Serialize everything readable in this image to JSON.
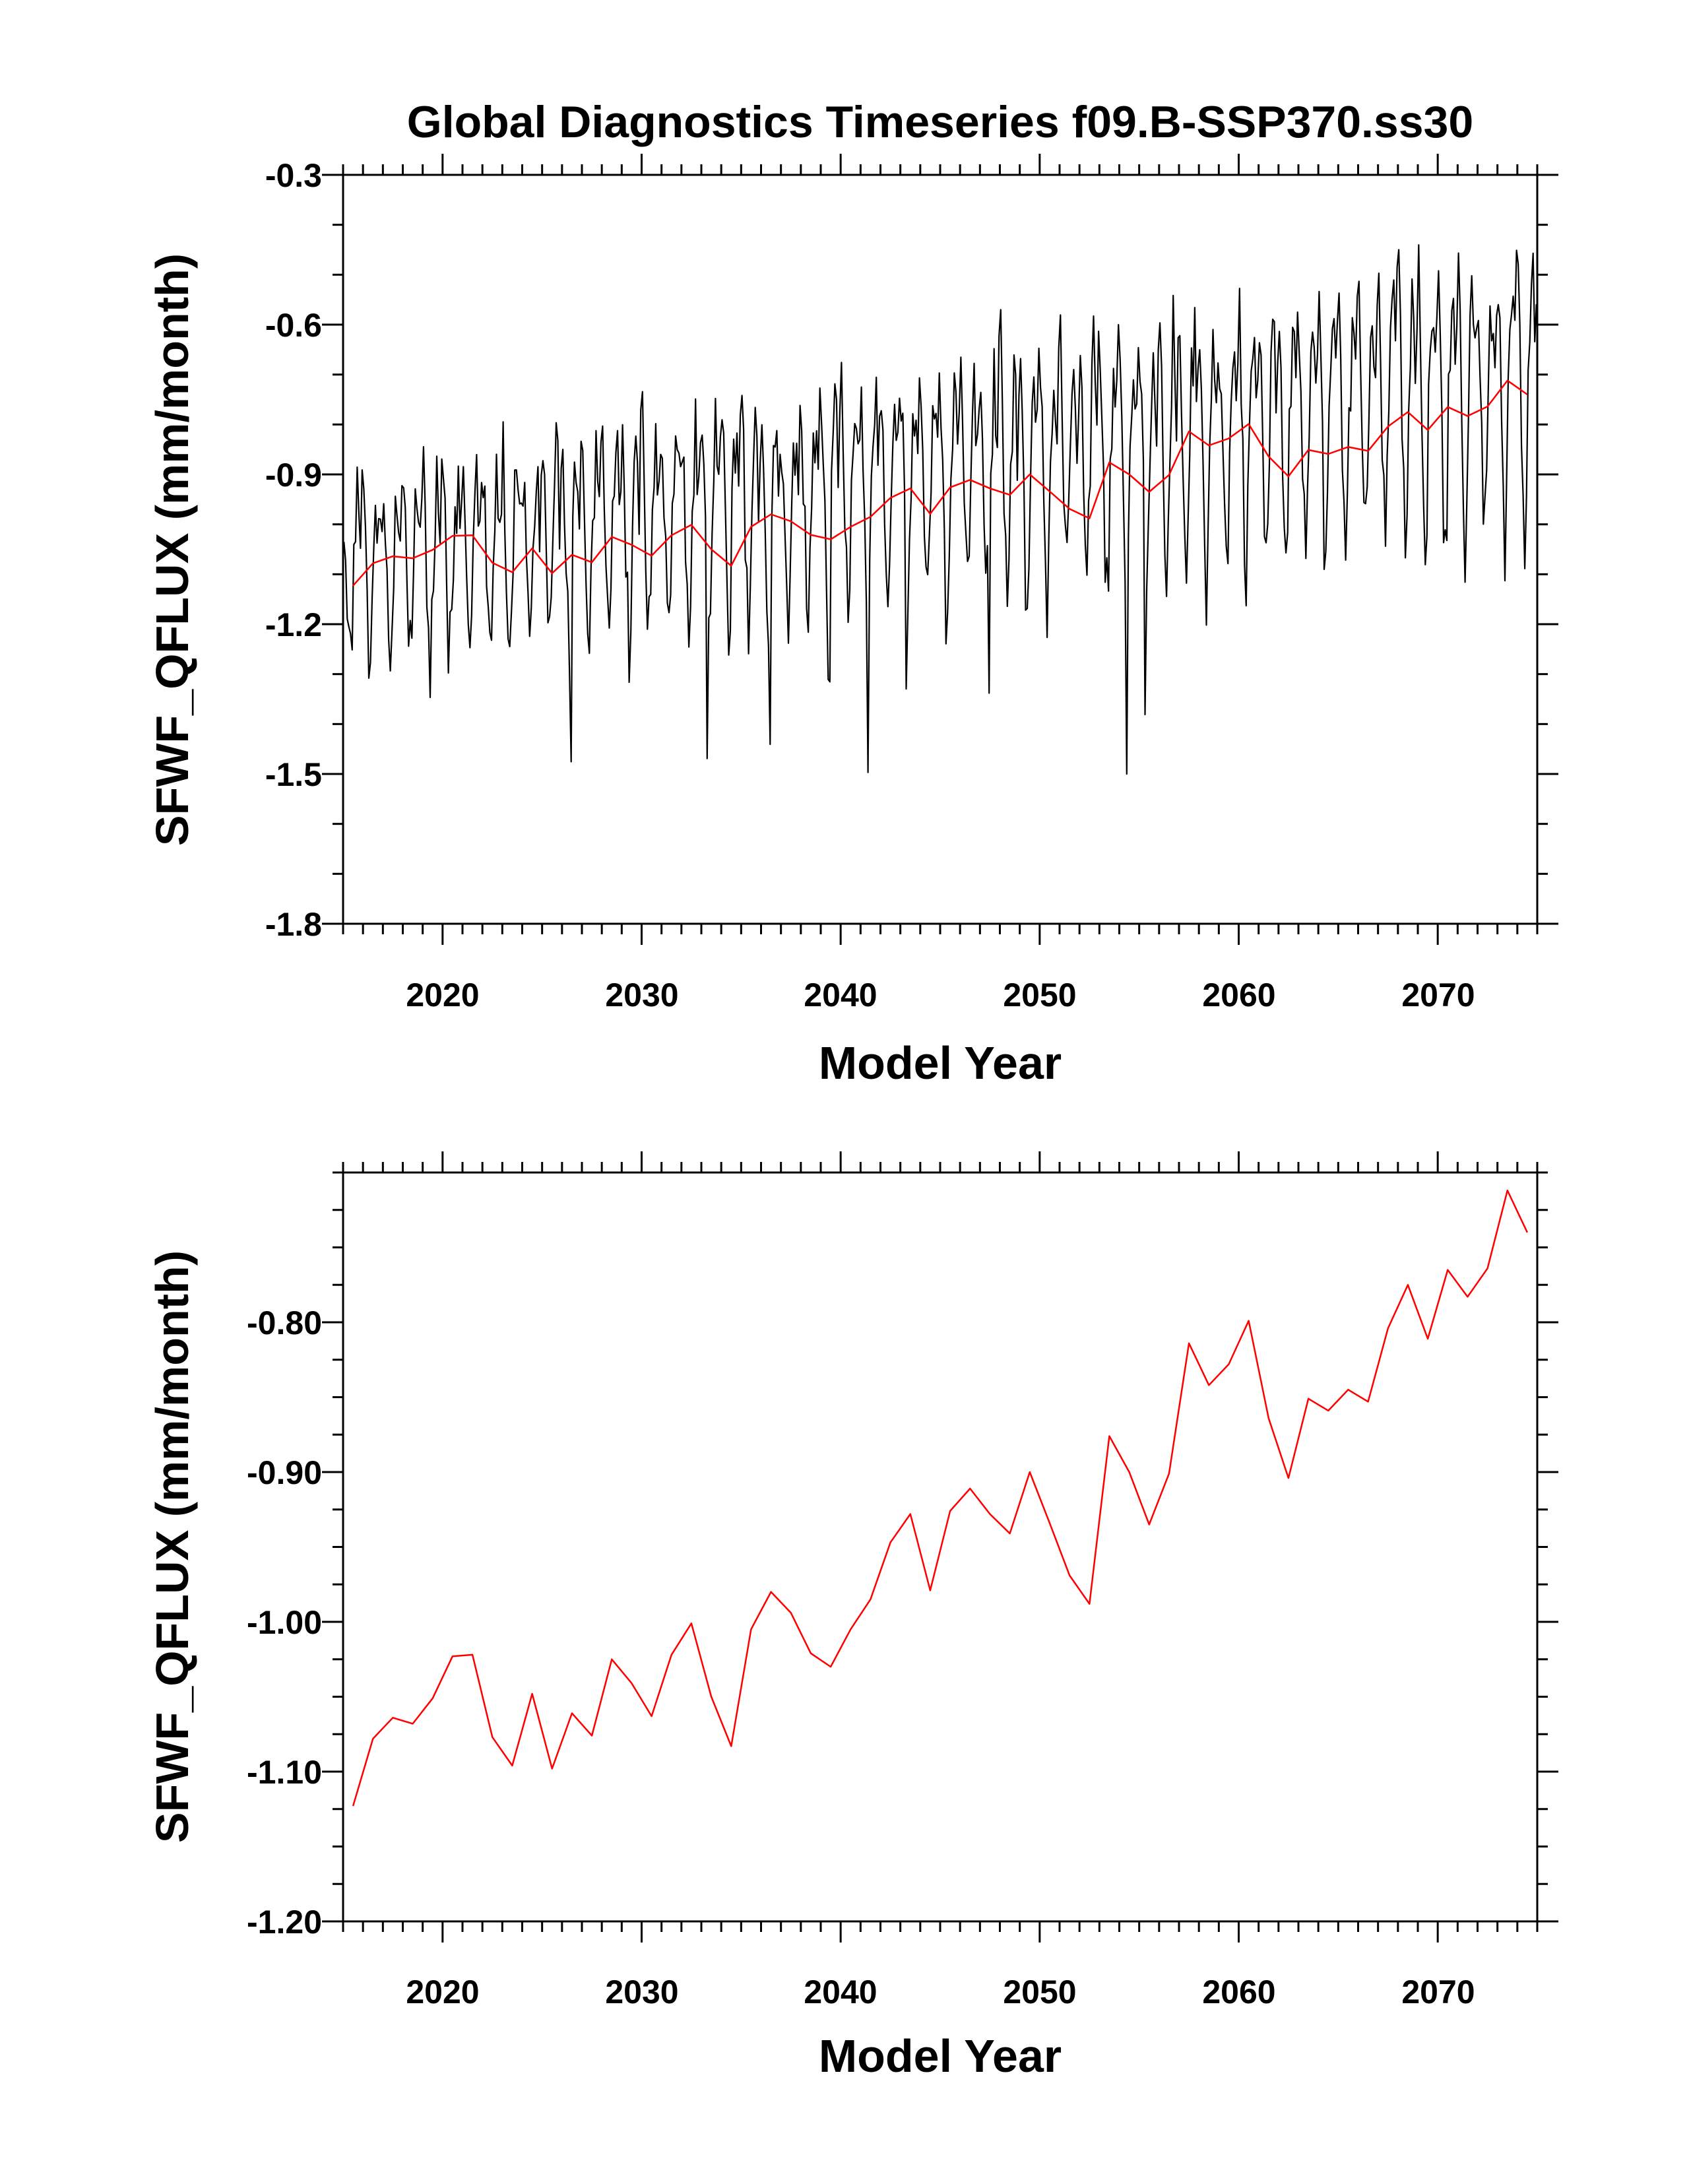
{
  "colors": {
    "monthly_series": "#000000",
    "annual_series": "#ff0000",
    "axes": "#000000"
  },
  "chart_data": [
    {
      "type": "line",
      "title": "Global Diagnostics Timeseries f09.B-SSP370.ss30",
      "xlabel": "Model Year",
      "ylabel": "SFWF_QFLUX (mm/month)",
      "xlim": [
        2015,
        2075
      ],
      "ylim": [
        -1.8,
        -0.3
      ],
      "xticks": [
        2020,
        2030,
        2040,
        2050,
        2060,
        2070
      ],
      "xtick_labels": [
        "2020",
        "2030",
        "2040",
        "2050",
        "2060",
        "2070"
      ],
      "yticks": [
        -1.8,
        -1.5,
        -1.2,
        -0.9,
        -0.6,
        -0.3
      ],
      "ytick_labels": [
        "-1.8",
        "-1.5",
        "-1.2",
        "-0.9",
        "-0.6",
        "-0.3"
      ],
      "grid": false,
      "series": [
        {
          "color": "black",
          "sampling": "monthly",
          "trend": {
            "start": -1.12,
            "end": -0.76
          },
          "seasonal_amplitude_start": 0.17,
          "seasonal_amplitude_end": 0.27,
          "monthly_cycle": [
            1.0,
            0.55,
            -0.1,
            -0.7,
            -1.0,
            -0.6,
            0.1,
            0.6,
            0.9,
            0.8,
            0.4,
            0.9
          ]
        },
        {
          "color": "red",
          "sampling": "annual mean",
          "x": [
            2015.5,
            2016.5,
            2017.5,
            2018.5,
            2019.5,
            2020.5,
            2021.5,
            2022.5,
            2023.5,
            2024.5,
            2025.5,
            2026.5,
            2027.5,
            2028.5,
            2029.5,
            2030.5,
            2031.5,
            2032.5,
            2033.5,
            2034.5,
            2035.5,
            2036.5,
            2037.5,
            2038.5,
            2039.5,
            2040.5,
            2041.5,
            2042.5,
            2043.5,
            2044.5,
            2045.5,
            2046.5,
            2047.5,
            2048.5,
            2049.5,
            2050.5,
            2051.5,
            2052.5,
            2053.5,
            2054.5,
            2055.5,
            2056.5,
            2057.5,
            2058.5,
            2059.5,
            2060.5,
            2061.5,
            2062.5,
            2063.5,
            2064.5,
            2065.5,
            2066.5,
            2067.5,
            2068.5,
            2069.5,
            2070.5,
            2071.5,
            2072.5,
            2073.5,
            2074.5
          ],
          "values": [
            -1.123,
            -1.078,
            -1.064,
            -1.068,
            -1.051,
            -1.023,
            -1.022,
            -1.077,
            -1.096,
            -1.048,
            -1.098,
            -1.061,
            -1.076,
            -1.025,
            -1.041,
            -1.063,
            -1.022,
            -1.001,
            -1.05,
            -1.083,
            -1.005,
            -0.98,
            -0.994,
            -1.021,
            -1.03,
            -1.005,
            -0.985,
            -0.947,
            -0.928,
            -0.979,
            -0.926,
            -0.911,
            -0.928,
            -0.941,
            -0.9,
            -0.934,
            -0.969,
            -0.988,
            -0.876,
            -0.9,
            -0.935,
            -0.901,
            -0.814,
            -0.842,
            -0.828,
            -0.799,
            -0.864,
            -0.904,
            -0.851,
            -0.859,
            -0.845,
            -0.853,
            -0.804,
            -0.775,
            -0.811,
            -0.765,
            -0.783,
            -0.764,
            -0.712,
            -0.74
          ]
        }
      ]
    },
    {
      "type": "line",
      "title": "",
      "xlabel": "Model Year",
      "ylabel": "SFWF_QFLUX (mm/month)",
      "xlim": [
        2015,
        2075
      ],
      "ylim": [
        -1.2,
        -0.7
      ],
      "xticks": [
        2020,
        2030,
        2040,
        2050,
        2060,
        2070
      ],
      "xtick_labels": [
        "2020",
        "2030",
        "2040",
        "2050",
        "2060",
        "2070"
      ],
      "yticks": [
        -1.2,
        -1.1,
        -1.0,
        -0.9,
        -0.8
      ],
      "ytick_labels": [
        "-1.20",
        "-1.10",
        "-1.00",
        "-0.90",
        "-0.80"
      ],
      "grid": false,
      "series": [
        {
          "color": "red",
          "sampling": "annual mean",
          "x": [
            2015.5,
            2016.5,
            2017.5,
            2018.5,
            2019.5,
            2020.5,
            2021.5,
            2022.5,
            2023.5,
            2024.5,
            2025.5,
            2026.5,
            2027.5,
            2028.5,
            2029.5,
            2030.5,
            2031.5,
            2032.5,
            2033.5,
            2034.5,
            2035.5,
            2036.5,
            2037.5,
            2038.5,
            2039.5,
            2040.5,
            2041.5,
            2042.5,
            2043.5,
            2044.5,
            2045.5,
            2046.5,
            2047.5,
            2048.5,
            2049.5,
            2050.5,
            2051.5,
            2052.5,
            2053.5,
            2054.5,
            2055.5,
            2056.5,
            2057.5,
            2058.5,
            2059.5,
            2060.5,
            2061.5,
            2062.5,
            2063.5,
            2064.5,
            2065.5,
            2066.5,
            2067.5,
            2068.5,
            2069.5,
            2070.5,
            2071.5,
            2072.5,
            2073.5,
            2074.5
          ],
          "values": [
            -1.123,
            -1.078,
            -1.064,
            -1.068,
            -1.051,
            -1.023,
            -1.022,
            -1.077,
            -1.096,
            -1.048,
            -1.098,
            -1.061,
            -1.076,
            -1.025,
            -1.041,
            -1.063,
            -1.022,
            -1.001,
            -1.05,
            -1.083,
            -1.005,
            -0.98,
            -0.994,
            -1.021,
            -1.03,
            -1.005,
            -0.985,
            -0.947,
            -0.928,
            -0.979,
            -0.926,
            -0.911,
            -0.928,
            -0.941,
            -0.9,
            -0.934,
            -0.969,
            -0.988,
            -0.876,
            -0.9,
            -0.935,
            -0.901,
            -0.814,
            -0.842,
            -0.828,
            -0.799,
            -0.864,
            -0.904,
            -0.851,
            -0.859,
            -0.845,
            -0.853,
            -0.804,
            -0.775,
            -0.811,
            -0.765,
            -0.783,
            -0.764,
            -0.712,
            -0.74
          ]
        }
      ]
    }
  ]
}
